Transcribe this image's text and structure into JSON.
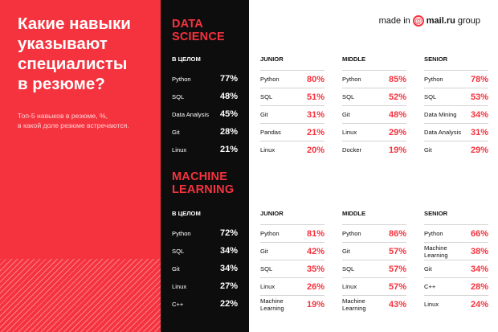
{
  "headline": [
    "Какие навыки",
    "указывают",
    "специалисты",
    "в резюме?"
  ],
  "subtitle": [
    "Топ-5 навыков в резюме, %,",
    "в какой доле резюме встречаются."
  ],
  "brand": {
    "prefix": "made in",
    "at_symbol": "@",
    "name": "mail.ru",
    "suffix": "group"
  },
  "colors": {
    "accent": "#f5333f",
    "dark": "#0d0d0d",
    "text": "#111111"
  },
  "sections": [
    {
      "title": [
        "DATA",
        "SCIENCE"
      ],
      "overall_label": "В ЦЕЛОМ",
      "overall": [
        {
          "name": [
            "Python"
          ],
          "pct": "77%"
        },
        {
          "name": [
            "SQL"
          ],
          "pct": "48%"
        },
        {
          "name": [
            "Data Analysis"
          ],
          "pct": "45%"
        },
        {
          "name": [
            "Git"
          ],
          "pct": "28%"
        },
        {
          "name": [
            "Linux"
          ],
          "pct": "21%"
        }
      ],
      "levels": [
        {
          "label": "JUNIOR",
          "items": [
            {
              "name": [
                "Python"
              ],
              "pct": "80%"
            },
            {
              "name": [
                "SQL"
              ],
              "pct": "51%"
            },
            {
              "name": [
                "Git"
              ],
              "pct": "31%"
            },
            {
              "name": [
                "Pandas"
              ],
              "pct": "21%"
            },
            {
              "name": [
                "Linux"
              ],
              "pct": "20%"
            }
          ]
        },
        {
          "label": "MIDDLE",
          "items": [
            {
              "name": [
                "Python"
              ],
              "pct": "85%"
            },
            {
              "name": [
                "SQL"
              ],
              "pct": "52%"
            },
            {
              "name": [
                "Git"
              ],
              "pct": "48%"
            },
            {
              "name": [
                "Linux"
              ],
              "pct": "29%"
            },
            {
              "name": [
                "Docker"
              ],
              "pct": "19%"
            }
          ]
        },
        {
          "label": "SENIOR",
          "items": [
            {
              "name": [
                "Python"
              ],
              "pct": "78%"
            },
            {
              "name": [
                "SQL"
              ],
              "pct": "53%"
            },
            {
              "name": [
                "Data Mining"
              ],
              "pct": "34%"
            },
            {
              "name": [
                "Data Analysis"
              ],
              "pct": "31%"
            },
            {
              "name": [
                "Git"
              ],
              "pct": "29%"
            }
          ]
        }
      ]
    },
    {
      "title": [
        "MACHINE",
        "LEARNING"
      ],
      "overall_label": "В ЦЕЛОМ",
      "overall": [
        {
          "name": [
            "Python"
          ],
          "pct": "72%"
        },
        {
          "name": [
            "SQL"
          ],
          "pct": "34%"
        },
        {
          "name": [
            "Git"
          ],
          "pct": "34%"
        },
        {
          "name": [
            "Linux"
          ],
          "pct": "27%"
        },
        {
          "name": [
            "C++"
          ],
          "pct": "22%"
        }
      ],
      "levels": [
        {
          "label": "JUNIOR",
          "items": [
            {
              "name": [
                "Python"
              ],
              "pct": "81%"
            },
            {
              "name": [
                "Git"
              ],
              "pct": "42%"
            },
            {
              "name": [
                "SQL"
              ],
              "pct": "35%"
            },
            {
              "name": [
                "Linux"
              ],
              "pct": "26%"
            },
            {
              "name": [
                "Machine",
                "Learning"
              ],
              "pct": "19%"
            }
          ]
        },
        {
          "label": "MIDDLE",
          "items": [
            {
              "name": [
                "Python"
              ],
              "pct": "86%"
            },
            {
              "name": [
                "Git"
              ],
              "pct": "57%"
            },
            {
              "name": [
                "SQL"
              ],
              "pct": "57%"
            },
            {
              "name": [
                "Linux"
              ],
              "pct": "57%"
            },
            {
              "name": [
                "Machine",
                "Learning"
              ],
              "pct": "43%"
            }
          ]
        },
        {
          "label": "SENIOR",
          "items": [
            {
              "name": [
                "Python"
              ],
              "pct": "66%"
            },
            {
              "name": [
                "Machine",
                "Learning"
              ],
              "pct": "38%"
            },
            {
              "name": [
                "Git"
              ],
              "pct": "34%"
            },
            {
              "name": [
                "C++"
              ],
              "pct": "28%"
            },
            {
              "name": [
                "Linux"
              ],
              "pct": "24%"
            }
          ]
        }
      ]
    }
  ]
}
